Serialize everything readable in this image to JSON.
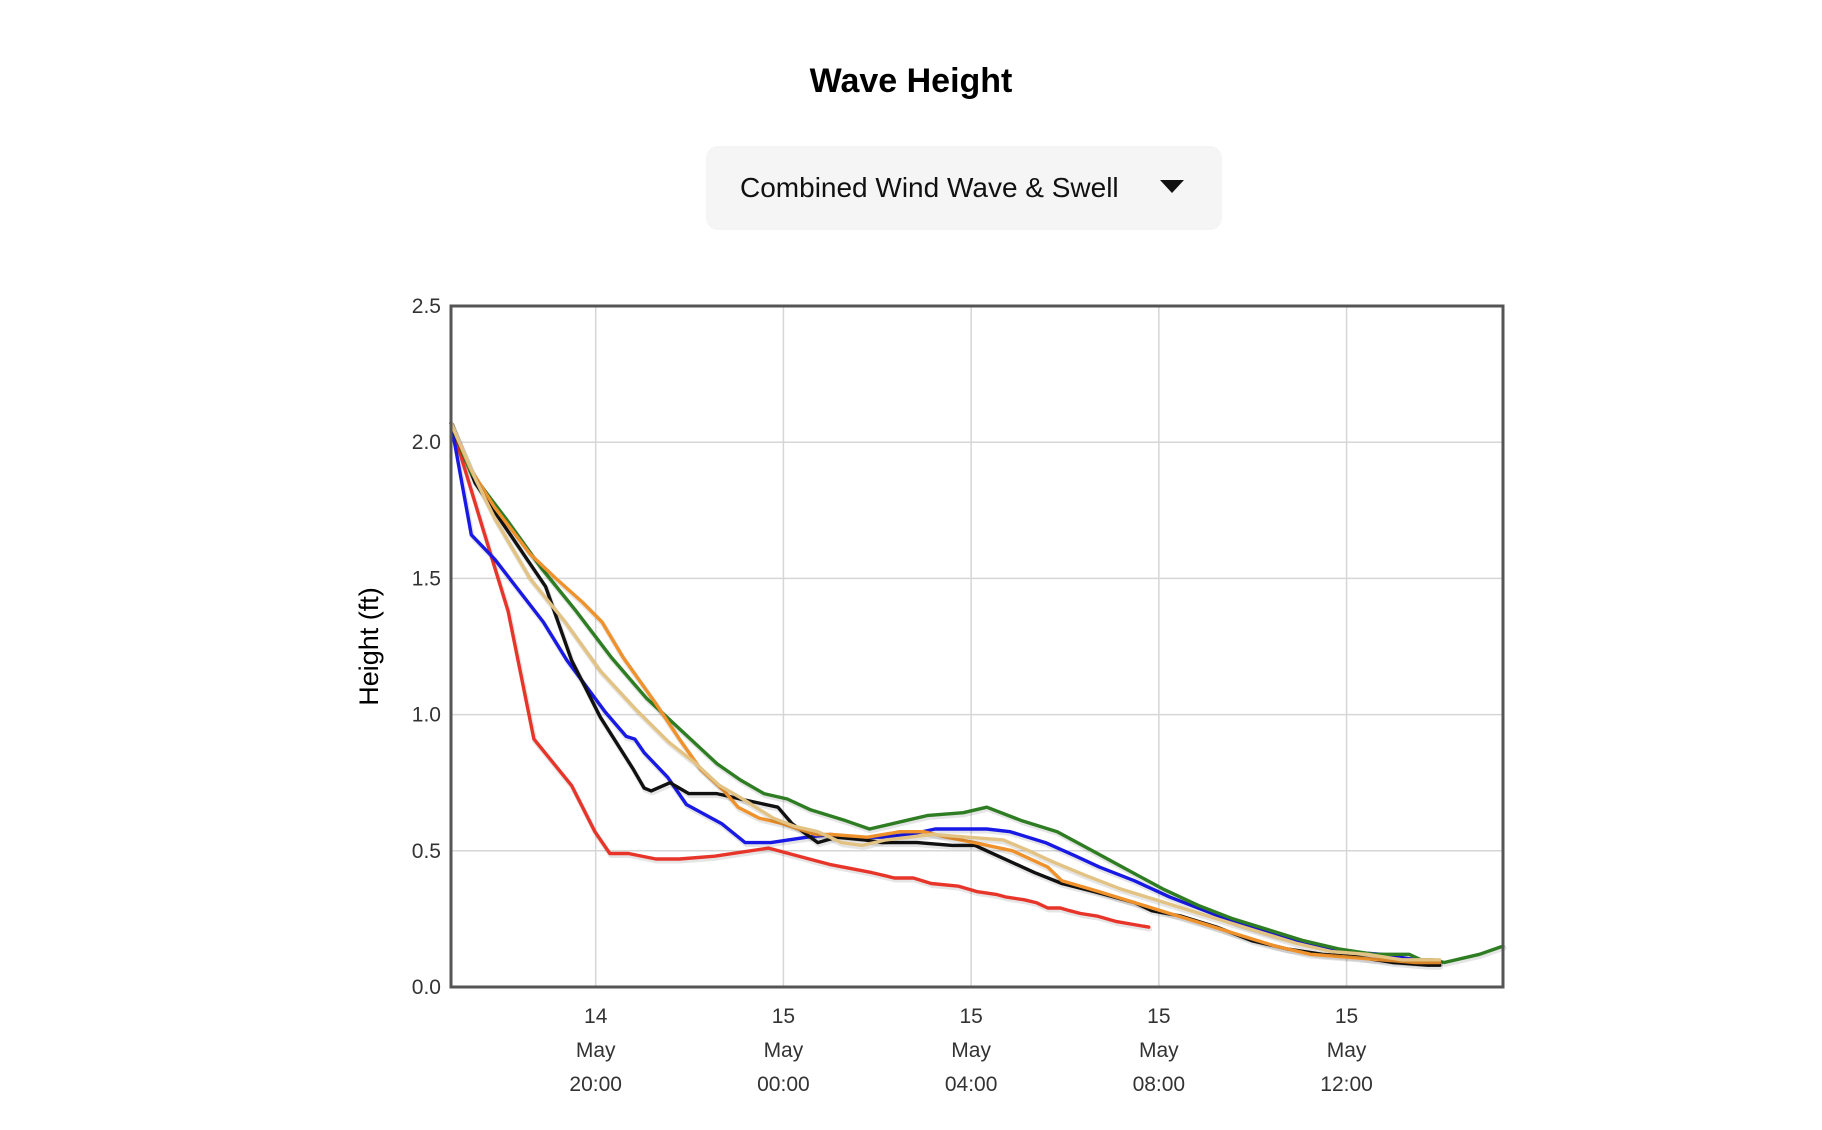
{
  "header": {
    "title": "Wave Height",
    "selector_value": "Combined Wind Wave & Swell",
    "selector_icon": "chevron-down-icon"
  },
  "chart_data": {
    "type": "line",
    "ylabel": "Height (ft)",
    "xlabel": "",
    "ylim": [
      0,
      2.5
    ],
    "yticks": [
      0.0,
      0.5,
      1.0,
      1.5,
      2.0,
      2.5
    ],
    "xlim": [
      "2024-05-14T16:55",
      "2024-05-15T15:20"
    ],
    "xticks": [
      {
        "t": "2024-05-14T20:00",
        "label": [
          "14",
          "May",
          "20:00"
        ]
      },
      {
        "t": "2024-05-15T00:00",
        "label": [
          "15",
          "May",
          "00:00"
        ]
      },
      {
        "t": "2024-05-15T04:00",
        "label": [
          "15",
          "May",
          "04:00"
        ]
      },
      {
        "t": "2024-05-15T08:00",
        "label": [
          "15",
          "May",
          "08:00"
        ]
      },
      {
        "t": "2024-05-15T12:00",
        "label": [
          "15",
          "May",
          "12:00"
        ]
      }
    ],
    "grid": true,
    "series": [
      {
        "color": "#e8352a",
        "points": [
          [
            "2024-05-14T16:55",
            2.07
          ],
          [
            "2024-05-14T17:36",
            1.68
          ],
          [
            "2024-05-14T18:08",
            1.38
          ],
          [
            "2024-05-14T18:41",
            0.91
          ],
          [
            "2024-05-14T19:29",
            0.74
          ],
          [
            "2024-05-14T19:59",
            0.57
          ],
          [
            "2024-05-14T20:18",
            0.49
          ],
          [
            "2024-05-14T20:42",
            0.49
          ],
          [
            "2024-05-14T21:17",
            0.47
          ],
          [
            "2024-05-14T21:47",
            0.47
          ],
          [
            "2024-05-14T22:32",
            0.48
          ],
          [
            "2024-05-14T23:41",
            0.51
          ],
          [
            "2024-05-15T00:33",
            0.47
          ],
          [
            "2024-05-15T00:59",
            0.45
          ],
          [
            "2024-05-15T01:53",
            0.42
          ],
          [
            "2024-05-15T02:22",
            0.4
          ],
          [
            "2024-05-15T02:46",
            0.4
          ],
          [
            "2024-05-15T03:09",
            0.38
          ],
          [
            "2024-05-15T03:44",
            0.37
          ],
          [
            "2024-05-15T04:08",
            0.35
          ],
          [
            "2024-05-15T04:32",
            0.34
          ],
          [
            "2024-05-15T04:45",
            0.33
          ],
          [
            "2024-05-15T05:08",
            0.32
          ],
          [
            "2024-05-15T05:23",
            0.31
          ],
          [
            "2024-05-15T05:38",
            0.29
          ],
          [
            "2024-05-15T05:54",
            0.29
          ],
          [
            "2024-05-15T06:06",
            0.28
          ],
          [
            "2024-05-15T06:20",
            0.27
          ],
          [
            "2024-05-15T06:42",
            0.26
          ],
          [
            "2024-05-15T07:06",
            0.24
          ],
          [
            "2024-05-15T07:47",
            0.22
          ]
        ]
      },
      {
        "color": "#1919e6",
        "points": [
          [
            "2024-05-14T16:55",
            2.07
          ],
          [
            "2024-05-14T17:21",
            1.66
          ],
          [
            "2024-05-14T17:51",
            1.57
          ],
          [
            "2024-05-14T18:53",
            1.34
          ],
          [
            "2024-05-14T19:23",
            1.2
          ],
          [
            "2024-05-14T20:12",
            1.01
          ],
          [
            "2024-05-14T20:39",
            0.92
          ],
          [
            "2024-05-14T20:50",
            0.91
          ],
          [
            "2024-05-14T21:02",
            0.86
          ],
          [
            "2024-05-14T21:32",
            0.77
          ],
          [
            "2024-05-14T21:56",
            0.67
          ],
          [
            "2024-05-14T22:41",
            0.6
          ],
          [
            "2024-05-14T23:11",
            0.53
          ],
          [
            "2024-05-14T23:44",
            0.53
          ],
          [
            "2024-05-15T00:30",
            0.55
          ],
          [
            "2024-05-15T01:00",
            0.56
          ],
          [
            "2024-05-15T01:36",
            0.55
          ],
          [
            "2024-05-15T02:06",
            0.55
          ],
          [
            "2024-05-15T02:41",
            0.56
          ],
          [
            "2024-05-15T03:14",
            0.58
          ],
          [
            "2024-05-15T03:38",
            0.58
          ],
          [
            "2024-05-15T04:20",
            0.58
          ],
          [
            "2024-05-15T04:50",
            0.57
          ],
          [
            "2024-05-15T05:35",
            0.53
          ],
          [
            "2024-05-15T06:14",
            0.48
          ],
          [
            "2024-05-15T06:44",
            0.44
          ],
          [
            "2024-05-15T07:29",
            0.39
          ],
          [
            "2024-05-15T08:14",
            0.33
          ],
          [
            "2024-05-15T08:59",
            0.28
          ],
          [
            "2024-05-15T09:44",
            0.23
          ],
          [
            "2024-05-15T10:29",
            0.19
          ],
          [
            "2024-05-15T11:14",
            0.16
          ],
          [
            "2024-05-15T11:59",
            0.13
          ],
          [
            "2024-05-15T12:44",
            0.12
          ],
          [
            "2024-05-15T13:29",
            0.1
          ],
          [
            "2024-05-15T13:59",
            0.09
          ]
        ]
      },
      {
        "color": "#111111",
        "points": [
          [
            "2024-05-14T16:55",
            2.07
          ],
          [
            "2024-05-14T17:26",
            1.85
          ],
          [
            "2024-05-14T18:11",
            1.66
          ],
          [
            "2024-05-14T18:56",
            1.47
          ],
          [
            "2024-05-14T19:29",
            1.2
          ],
          [
            "2024-05-14T20:06",
            0.99
          ],
          [
            "2024-05-14T20:48",
            0.8
          ],
          [
            "2024-05-14T21:02",
            0.73
          ],
          [
            "2024-05-14T21:11",
            0.72
          ],
          [
            "2024-05-14T21:35",
            0.75
          ],
          [
            "2024-05-14T21:59",
            0.71
          ],
          [
            "2024-05-14T22:35",
            0.71
          ],
          [
            "2024-05-14T23:05",
            0.69
          ],
          [
            "2024-05-14T23:53",
            0.66
          ],
          [
            "2024-05-15T00:11",
            0.6
          ],
          [
            "2024-05-15T00:44",
            0.53
          ],
          [
            "2024-05-15T01:08",
            0.55
          ],
          [
            "2024-05-15T01:44",
            0.54
          ],
          [
            "2024-05-15T02:06",
            0.53
          ],
          [
            "2024-05-15T02:51",
            0.53
          ],
          [
            "2024-05-15T03:36",
            0.52
          ],
          [
            "2024-05-15T04:05",
            0.52
          ],
          [
            "2024-05-15T04:35",
            0.48
          ],
          [
            "2024-05-15T05:21",
            0.42
          ],
          [
            "2024-05-15T05:56",
            0.38
          ],
          [
            "2024-05-15T06:38",
            0.35
          ],
          [
            "2024-05-15T07:29",
            0.31
          ],
          [
            "2024-05-15T07:51",
            0.28
          ],
          [
            "2024-05-15T08:29",
            0.26
          ],
          [
            "2024-05-15T09:14",
            0.22
          ],
          [
            "2024-05-15T09:59",
            0.17
          ],
          [
            "2024-05-15T10:44",
            0.14
          ],
          [
            "2024-05-15T11:29",
            0.12
          ],
          [
            "2024-05-15T12:14",
            0.11
          ],
          [
            "2024-05-15T12:59",
            0.09
          ],
          [
            "2024-05-15T13:44",
            0.08
          ],
          [
            "2024-05-15T13:59",
            0.08
          ]
        ]
      },
      {
        "color": "#2e7d23",
        "points": [
          [
            "2024-05-14T16:55",
            2.07
          ],
          [
            "2024-05-14T17:20",
            1.89
          ],
          [
            "2024-05-14T18:05",
            1.72
          ],
          [
            "2024-05-14T18:50",
            1.54
          ],
          [
            "2024-05-14T19:35",
            1.38
          ],
          [
            "2024-05-14T20:20",
            1.21
          ],
          [
            "2024-05-14T21:05",
            1.06
          ],
          [
            "2024-05-14T21:50",
            0.94
          ],
          [
            "2024-05-14T22:35",
            0.82
          ],
          [
            "2024-05-14T23:05",
            0.76
          ],
          [
            "2024-05-14T23:35",
            0.71
          ],
          [
            "2024-05-15T00:05",
            0.69
          ],
          [
            "2024-05-15T00:35",
            0.65
          ],
          [
            "2024-05-15T01:20",
            0.61
          ],
          [
            "2024-05-15T01:50",
            0.58
          ],
          [
            "2024-05-15T02:35",
            0.61
          ],
          [
            "2024-05-15T03:05",
            0.63
          ],
          [
            "2024-05-15T03:50",
            0.64
          ],
          [
            "2024-05-15T04:20",
            0.66
          ],
          [
            "2024-05-15T05:05",
            0.61
          ],
          [
            "2024-05-15T05:50",
            0.57
          ],
          [
            "2024-05-15T06:35",
            0.5
          ],
          [
            "2024-05-15T07:20",
            0.43
          ],
          [
            "2024-05-15T08:05",
            0.36
          ],
          [
            "2024-05-15T08:50",
            0.3
          ],
          [
            "2024-05-15T09:35",
            0.25
          ],
          [
            "2024-05-15T10:20",
            0.21
          ],
          [
            "2024-05-15T11:05",
            0.17
          ],
          [
            "2024-05-15T11:50",
            0.14
          ],
          [
            "2024-05-15T12:35",
            0.12
          ],
          [
            "2024-05-15T13:05",
            0.12
          ],
          [
            "2024-05-15T13:20",
            0.12
          ],
          [
            "2024-05-15T13:35",
            0.1
          ],
          [
            "2024-05-15T13:50",
            0.1
          ],
          [
            "2024-05-15T14:05",
            0.09
          ],
          [
            "2024-05-15T14:50",
            0.12
          ],
          [
            "2024-05-15T15:20",
            0.15
          ]
        ]
      },
      {
        "color": "#f0922c",
        "points": [
          [
            "2024-05-14T16:55",
            2.07
          ],
          [
            "2024-05-14T17:20",
            1.9
          ],
          [
            "2024-05-14T17:51",
            1.76
          ],
          [
            "2024-05-14T18:36",
            1.59
          ],
          [
            "2024-05-14T19:09",
            1.5
          ],
          [
            "2024-05-14T19:44",
            1.41
          ],
          [
            "2024-05-14T20:08",
            1.34
          ],
          [
            "2024-05-14T20:35",
            1.21
          ],
          [
            "2024-05-14T21:17",
            1.04
          ],
          [
            "2024-05-14T21:47",
            0.91
          ],
          [
            "2024-05-14T22:14",
            0.8
          ],
          [
            "2024-05-14T22:44",
            0.72
          ],
          [
            "2024-05-14T23:02",
            0.66
          ],
          [
            "2024-05-14T23:29",
            0.62
          ],
          [
            "2024-05-14T23:59",
            0.6
          ],
          [
            "2024-05-15T00:41",
            0.56
          ],
          [
            "2024-05-15T01:02",
            0.56
          ],
          [
            "2024-05-15T01:47",
            0.55
          ],
          [
            "2024-05-15T02:29",
            0.57
          ],
          [
            "2024-05-15T02:59",
            0.57
          ],
          [
            "2024-05-15T03:29",
            0.55
          ],
          [
            "2024-05-15T04:04",
            0.53
          ],
          [
            "2024-05-15T04:53",
            0.5
          ],
          [
            "2024-05-15T05:38",
            0.44
          ],
          [
            "2024-05-15T05:56",
            0.39
          ],
          [
            "2024-05-15T06:44",
            0.35
          ],
          [
            "2024-05-15T07:29",
            0.31
          ],
          [
            "2024-05-15T08:14",
            0.27
          ],
          [
            "2024-05-15T08:59",
            0.23
          ],
          [
            "2024-05-15T09:44",
            0.19
          ],
          [
            "2024-05-15T10:29",
            0.15
          ],
          [
            "2024-05-15T11:14",
            0.12
          ],
          [
            "2024-05-15T11:59",
            0.11
          ],
          [
            "2024-05-15T12:44",
            0.1
          ],
          [
            "2024-05-15T13:29",
            0.09
          ],
          [
            "2024-05-15T13:59",
            0.09
          ]
        ]
      },
      {
        "color": "#e3c384",
        "points": [
          [
            "2024-05-14T16:55",
            2.07
          ],
          [
            "2024-05-14T17:27",
            1.86
          ],
          [
            "2024-05-14T17:51",
            1.72
          ],
          [
            "2024-05-14T18:36",
            1.5
          ],
          [
            "2024-05-14T19:21",
            1.34
          ],
          [
            "2024-05-14T20:06",
            1.16
          ],
          [
            "2024-05-14T20:51",
            1.02
          ],
          [
            "2024-05-14T21:33",
            0.9
          ],
          [
            "2024-05-14T22:08",
            0.82
          ],
          [
            "2024-05-14T22:38",
            0.74
          ],
          [
            "2024-05-14T23:08",
            0.69
          ],
          [
            "2024-05-14T23:47",
            0.62
          ],
          [
            "2024-05-15T00:14",
            0.59
          ],
          [
            "2024-05-15T00:44",
            0.57
          ],
          [
            "2024-05-15T01:14",
            0.53
          ],
          [
            "2024-05-15T01:41",
            0.52
          ],
          [
            "2024-05-15T02:11",
            0.54
          ],
          [
            "2024-05-15T02:41",
            0.55
          ],
          [
            "2024-05-15T03:11",
            0.56
          ],
          [
            "2024-05-15T03:56",
            0.55
          ],
          [
            "2024-05-15T04:41",
            0.54
          ],
          [
            "2024-05-15T05:14",
            0.5
          ],
          [
            "2024-05-15T05:44",
            0.46
          ],
          [
            "2024-05-15T06:26",
            0.41
          ],
          [
            "2024-05-15T07:11",
            0.36
          ],
          [
            "2024-05-15T07:56",
            0.32
          ],
          [
            "2024-05-15T08:41",
            0.28
          ],
          [
            "2024-05-15T09:26",
            0.24
          ],
          [
            "2024-05-15T10:11",
            0.2
          ],
          [
            "2024-05-15T10:56",
            0.16
          ],
          [
            "2024-05-15T11:41",
            0.13
          ],
          [
            "2024-05-15T12:26",
            0.12
          ],
          [
            "2024-05-15T13:11",
            0.1
          ],
          [
            "2024-05-15T13:59",
            0.1
          ]
        ]
      }
    ]
  }
}
